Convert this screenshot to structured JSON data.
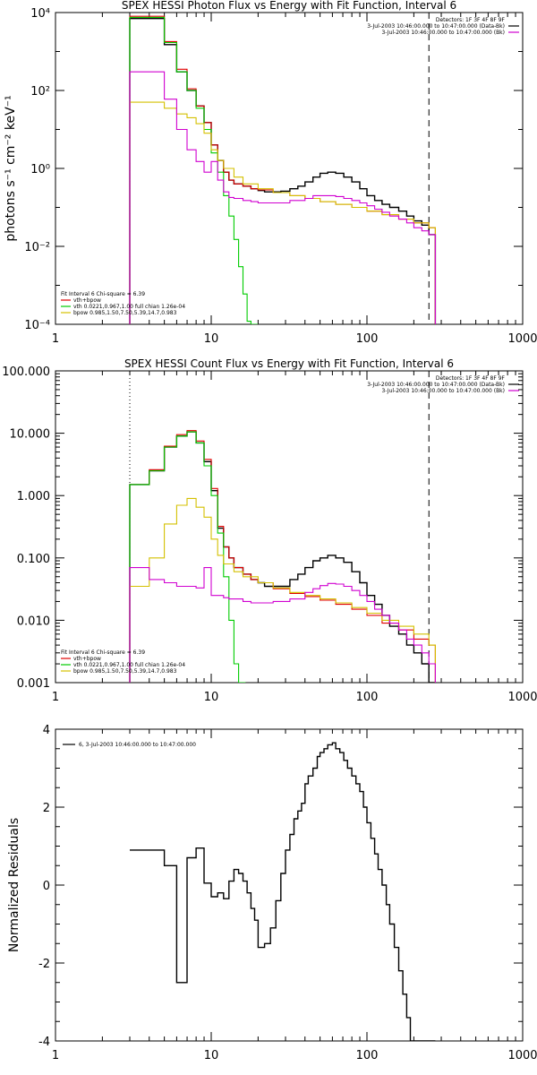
{
  "colors": {
    "data": "#000000",
    "total_fit": "#e00000",
    "vth": "#00cc00",
    "bpow": "#d4c000",
    "background": "#d000d0"
  },
  "chart_data": [
    {
      "type": "line",
      "step": true,
      "title": "SPEX HESSI Photon Flux vs Energy with Fit Function, Interval 6",
      "xlabel": "",
      "ylabel": "photons s⁻¹ cm⁻² keV⁻¹",
      "xscale": "log",
      "yscale": "log",
      "xlim": [
        1,
        1000
      ],
      "ylim": [
        0.0001,
        10000
      ],
      "xticks": [
        1,
        10,
        100,
        1000
      ],
      "xticklabels": [
        "1",
        "10",
        "100",
        "1000"
      ],
      "yticks": [
        0.0001,
        0.01,
        1,
        100,
        10000
      ],
      "yticklabels": [
        "10⁻⁴",
        "10⁻²",
        "10⁰",
        "10²",
        "10⁴"
      ],
      "vlines": [
        {
          "x": 3,
          "style": "dotted"
        },
        {
          "x": 250,
          "style": "dashed"
        }
      ],
      "legend_top": [
        "Detectors: 1F 3F 4F 8F 9F",
        "3-Jul-2003 10:46:00.000 to 10:47:00.000 (Data-Bk)",
        "3-Jul-2003 10:46:00.000 to 10:47:00.000 (Bk)"
      ],
      "legend_bottom": [
        "Fit Interval 6   Chi-square = 6.39",
        "vth+bpow",
        "vth 0.0221,0.967,1.00  full chian 1.26e-04",
        "bpow 0.985,1.50,7.50,5.39,14.7,0.983"
      ],
      "series": [
        {
          "color_key": "data",
          "x": [
            3,
            4,
            5,
            6,
            7,
            8,
            9,
            10,
            11,
            12,
            13,
            14,
            16,
            18,
            20,
            22,
            25,
            28,
            32,
            36,
            40,
            45,
            50,
            56,
            63,
            71,
            80,
            90,
            100,
            112,
            125,
            140,
            160,
            180,
            200,
            225,
            250
          ],
          "y": [
            7000,
            7000,
            1500,
            300,
            100,
            40,
            15,
            4,
            1.6,
            0.8,
            0.5,
            0.4,
            0.35,
            0.3,
            0.27,
            0.25,
            0.25,
            0.26,
            0.3,
            0.35,
            0.45,
            0.6,
            0.75,
            0.8,
            0.75,
            0.6,
            0.45,
            0.3,
            0.2,
            0.15,
            0.12,
            0.1,
            0.08,
            0.06,
            0.045,
            0.035,
            0.02
          ]
        },
        {
          "color_key": "total_fit",
          "x": [
            3,
            4,
            5,
            6,
            7,
            8,
            9,
            10,
            11,
            12,
            13,
            14,
            16,
            18,
            20,
            25,
            32,
            40,
            50,
            63,
            80,
            100,
            125,
            160,
            200,
            250
          ],
          "y": [
            8000,
            8000,
            1800,
            350,
            110,
            40,
            15,
            4,
            1.6,
            0.8,
            0.5,
            0.4,
            0.35,
            0.3,
            0.28,
            0.24,
            0.2,
            0.17,
            0.14,
            0.12,
            0.1,
            0.08,
            0.065,
            0.05,
            0.04,
            0.03
          ]
        },
        {
          "color_key": "vth",
          "x": [
            3,
            4,
            5,
            6,
            7,
            8,
            9,
            10,
            11,
            12,
            13,
            14,
            15,
            16,
            17,
            18
          ],
          "y": [
            7500,
            7500,
            1700,
            300,
            100,
            35,
            10,
            2.5,
            0.8,
            0.2,
            0.06,
            0.015,
            0.003,
            0.0006,
            0.00012,
            0.0001
          ]
        },
        {
          "color_key": "bpow",
          "x": [
            3,
            4,
            5,
            6,
            7,
            8,
            9,
            10,
            11,
            12,
            14,
            16,
            20,
            25,
            32,
            40,
            50,
            63,
            80,
            100,
            125,
            160,
            200,
            250
          ],
          "y": [
            50,
            50,
            35,
            25,
            20,
            14,
            8,
            3,
            1.6,
            1,
            0.6,
            0.4,
            0.3,
            0.24,
            0.2,
            0.17,
            0.14,
            0.12,
            0.1,
            0.08,
            0.065,
            0.05,
            0.04,
            0.03
          ]
        },
        {
          "color_key": "background",
          "x": [
            3,
            4,
            5,
            6,
            7,
            8,
            9,
            10,
            11,
            12,
            13,
            14,
            16,
            18,
            20,
            25,
            32,
            40,
            45,
            50,
            56,
            63,
            71,
            80,
            90,
            100,
            112,
            125,
            140,
            160,
            180,
            200,
            225,
            250
          ],
          "y": [
            300,
            300,
            60,
            10,
            3,
            1.5,
            0.8,
            1.5,
            0.5,
            0.25,
            0.18,
            0.17,
            0.15,
            0.14,
            0.13,
            0.13,
            0.15,
            0.17,
            0.2,
            0.2,
            0.2,
            0.19,
            0.17,
            0.15,
            0.13,
            0.11,
            0.09,
            0.075,
            0.06,
            0.05,
            0.04,
            0.03,
            0.025,
            0.02
          ]
        }
      ]
    },
    {
      "type": "line",
      "step": true,
      "title": "SPEX HESSI Count Flux vs Energy with Fit Function, Interval 6",
      "xlabel": "",
      "ylabel": "",
      "xscale": "log",
      "yscale": "log",
      "xlim": [
        1,
        1000
      ],
      "ylim": [
        0.001,
        100
      ],
      "xticks": [
        1,
        10,
        100,
        1000
      ],
      "xticklabels": [
        "1",
        "10",
        "100",
        "1000"
      ],
      "yticks": [
        0.001,
        0.01,
        0.1,
        1,
        10,
        100
      ],
      "yticklabels": [
        "0.001",
        "0.010",
        "0.100",
        "1.000",
        "10.000",
        "100.000"
      ],
      "vlines": [
        {
          "x": 3,
          "style": "dotted"
        },
        {
          "x": 250,
          "style": "dashed"
        }
      ],
      "legend_top": [
        "Detectors: 1F 3F 4F 8F 9F",
        "3-Jul-2003 10:46:00.000 to 10:47:00.000 (Data-Bk)",
        "3-Jul-2003 10:46:00.000 to 10:47:00.000 (Bk)"
      ],
      "legend_bottom": [
        "Fit Interval 6   Chi-square = 6.39",
        "vth+bpow",
        "vth 0.0221,0.967,1.00  full chian 1.26e-04",
        "bpow 0.985,1.50,7.50,5.39,14.7,0.983"
      ],
      "series": [
        {
          "color_key": "data",
          "x": [
            3,
            4,
            5,
            6,
            7,
            8,
            9,
            10,
            11,
            12,
            13,
            14,
            16,
            18,
            20,
            22,
            25,
            28,
            32,
            36,
            40,
            45,
            50,
            56,
            63,
            71,
            80,
            90,
            100,
            112,
            125,
            140,
            160,
            180,
            200,
            225,
            250
          ],
          "y": [
            1.5,
            2.5,
            6,
            9,
            10.5,
            7,
            3.5,
            1.2,
            0.3,
            0.15,
            0.1,
            0.07,
            0.055,
            0.045,
            0.04,
            0.035,
            0.035,
            0.035,
            0.045,
            0.055,
            0.07,
            0.09,
            0.1,
            0.11,
            0.1,
            0.085,
            0.06,
            0.04,
            0.025,
            0.018,
            0.012,
            0.008,
            0.006,
            0.004,
            0.003,
            0.002,
            0.001
          ]
        },
        {
          "color_key": "total_fit",
          "x": [
            3,
            4,
            5,
            6,
            7,
            8,
            9,
            10,
            11,
            12,
            13,
            14,
            16,
            18,
            20,
            25,
            32,
            40,
            50,
            63,
            80,
            100,
            125,
            160,
            200,
            250
          ],
          "y": [
            1.5,
            2.6,
            6.2,
            9.5,
            11,
            7.5,
            3.8,
            1.3,
            0.32,
            0.15,
            0.1,
            0.07,
            0.055,
            0.045,
            0.04,
            0.032,
            0.027,
            0.024,
            0.021,
            0.018,
            0.015,
            0.012,
            0.009,
            0.007,
            0.005,
            0.004
          ]
        },
        {
          "color_key": "vth",
          "x": [
            3,
            4,
            5,
            6,
            7,
            8,
            9,
            10,
            11,
            12,
            13,
            14,
            15
          ],
          "y": [
            1.5,
            2.5,
            6,
            9,
            10.5,
            7,
            3,
            1,
            0.25,
            0.05,
            0.01,
            0.002,
            0.001
          ]
        },
        {
          "color_key": "bpow",
          "x": [
            3,
            4,
            5,
            6,
            7,
            8,
            9,
            10,
            11,
            12,
            14,
            16,
            20,
            25,
            32,
            40,
            50,
            63,
            80,
            100,
            125,
            160,
            200,
            250
          ],
          "y": [
            0.035,
            0.1,
            0.35,
            0.7,
            0.9,
            0.65,
            0.45,
            0.2,
            0.11,
            0.08,
            0.06,
            0.05,
            0.04,
            0.033,
            0.028,
            0.025,
            0.022,
            0.019,
            0.016,
            0.013,
            0.01,
            0.008,
            0.006,
            0.004
          ]
        },
        {
          "color_key": "background",
          "x": [
            3,
            4,
            5,
            6,
            7,
            8,
            9,
            10,
            11,
            12,
            13,
            14,
            16,
            18,
            20,
            25,
            32,
            40,
            45,
            50,
            56,
            63,
            71,
            80,
            90,
            100,
            112,
            125,
            140,
            160,
            180,
            200,
            225,
            250
          ],
          "y": [
            0.07,
            0.045,
            0.04,
            0.035,
            0.035,
            0.033,
            0.07,
            0.025,
            0.025,
            0.023,
            0.022,
            0.022,
            0.02,
            0.019,
            0.019,
            0.02,
            0.022,
            0.028,
            0.032,
            0.036,
            0.039,
            0.038,
            0.035,
            0.03,
            0.025,
            0.02,
            0.015,
            0.012,
            0.009,
            0.007,
            0.005,
            0.004,
            0.003,
            0.002
          ]
        }
      ]
    },
    {
      "type": "line",
      "step": true,
      "title": "",
      "xlabel": "",
      "ylabel": "Normalized Residuals",
      "xscale": "log",
      "yscale": "linear",
      "xlim": [
        1,
        1000
      ],
      "ylim": [
        -4,
        4
      ],
      "xticks": [
        1,
        10,
        100,
        1000
      ],
      "xticklabels": [
        "1",
        "10",
        "100",
        "1000"
      ],
      "yticks": [
        -4,
        -2,
        0,
        2,
        4
      ],
      "yticklabels": [
        "-4",
        "-2",
        "0",
        "2",
        "4"
      ],
      "legend_top_left": "6,  3-Jul-2003 10:46:00.000 to 10:47:00.000",
      "series": [
        {
          "color_key": "data",
          "x": [
            3,
            4,
            5,
            6,
            7,
            8,
            9,
            10,
            11,
            12,
            13,
            14,
            15,
            16,
            17,
            18,
            19,
            20,
            22,
            24,
            26,
            28,
            30,
            32,
            34,
            36,
            38,
            40,
            42,
            45,
            48,
            50,
            53,
            56,
            60,
            63,
            67,
            71,
            75,
            80,
            85,
            90,
            95,
            100,
            106,
            112,
            118,
            125,
            133,
            140,
            150,
            160,
            170,
            180,
            190,
            200,
            212,
            225,
            240,
            250
          ],
          "y": [
            0.9,
            0.9,
            0.5,
            -2.5,
            0.7,
            0.95,
            0.05,
            -0.3,
            -0.2,
            -0.35,
            0.1,
            0.4,
            0.3,
            0.1,
            -0.2,
            -0.6,
            -0.9,
            -1.6,
            -1.5,
            -1.1,
            -0.4,
            0.3,
            0.9,
            1.3,
            1.7,
            1.9,
            2.1,
            2.6,
            2.8,
            3.0,
            3.3,
            3.4,
            3.5,
            3.6,
            3.65,
            3.5,
            3.4,
            3.2,
            3.0,
            2.8,
            2.6,
            2.4,
            2.0,
            1.6,
            1.2,
            0.8,
            0.4,
            0,
            -0.5,
            -1,
            -1.6,
            -2.2,
            -2.8,
            -3.4,
            -4,
            -4,
            -4,
            -4,
            -4,
            -4
          ]
        }
      ]
    }
  ]
}
